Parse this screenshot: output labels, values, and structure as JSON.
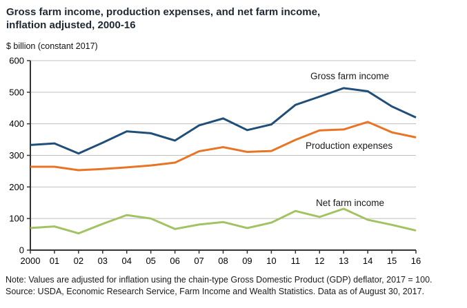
{
  "header": {
    "title_line1": "Gross farm income, production expenses, and net farm income,",
    "title_line2": "inflation adjusted, 2000-16"
  },
  "chart_data": {
    "type": "line",
    "title": "Gross farm income, production expenses, and net farm income, inflation adjusted, 2000-16",
    "ylabel": "$ billion (constant 2017)",
    "xlabel": "",
    "ylim": [
      0,
      600
    ],
    "y_ticks": [
      0,
      100,
      200,
      300,
      400,
      500,
      600
    ],
    "grid": "horizontal",
    "legend_position": "inline-labels",
    "x_labels": [
      "2000",
      "01",
      "02",
      "03",
      "04",
      "05",
      "06",
      "07",
      "08",
      "09",
      "10",
      "11",
      "12",
      "13",
      "14",
      "15",
      "16"
    ],
    "series": [
      {
        "name": "Gross farm income",
        "color": "#1F4E79",
        "values": [
          333,
          338,
          306,
          340,
          376,
          370,
          347,
          395,
          417,
          380,
          398,
          460,
          486,
          513,
          503,
          455,
          420
        ]
      },
      {
        "name": "Production expenses",
        "color": "#E87425",
        "values": [
          264,
          264,
          253,
          257,
          262,
          268,
          277,
          313,
          326,
          311,
          314,
          349,
          379,
          382,
          406,
          373,
          357
        ]
      },
      {
        "name": "Net farm income",
        "color": "#A3C262",
        "values": [
          70,
          75,
          53,
          83,
          111,
          100,
          67,
          81,
          89,
          70,
          87,
          124,
          105,
          131,
          96,
          80,
          62
        ]
      }
    ],
    "colors": {
      "grid": "#BFBFBF",
      "axis": "#333333",
      "tick_text": "#000000"
    }
  },
  "notes": {
    "line1": "Note: Values are adjusted for inflation using the chain-type Gross Domestic Product (GDP) deflator, 2017 = 100.",
    "line2": "Source: USDA, Economic Research Service, Farm Income and Wealth Statistics. Data as of August 30, 2017."
  }
}
